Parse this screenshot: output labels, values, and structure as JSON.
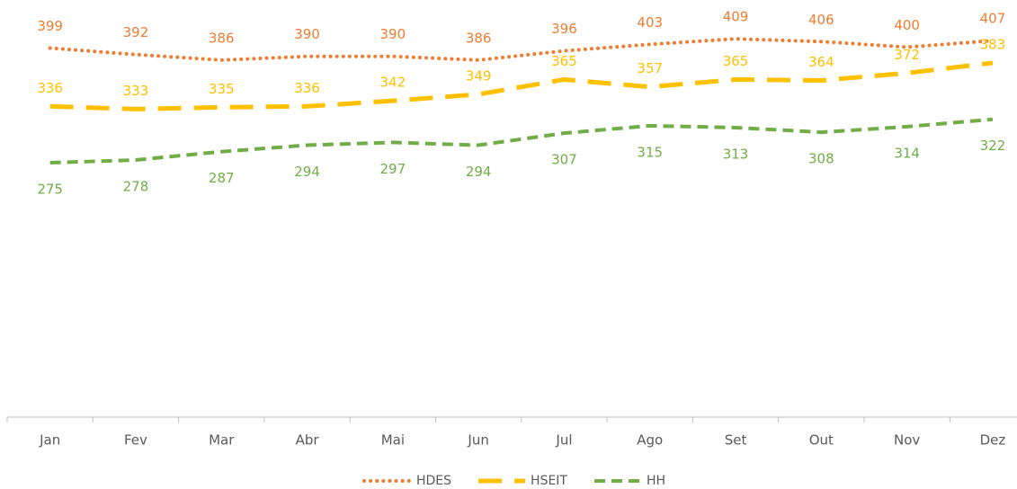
{
  "chart_data": {
    "type": "line",
    "categories": [
      "Jan",
      "Fev",
      "Mar",
      "Abr",
      "Mai",
      "Jun",
      "Jul",
      "Ago",
      "Set",
      "Out",
      "Nov",
      "Dez"
    ],
    "series": [
      {
        "name": "HDES",
        "color": "#ed7d31",
        "dash": "dotted",
        "values": [
          399,
          392,
          386,
          390,
          390,
          386,
          396,
          403,
          409,
          406,
          400,
          407
        ]
      },
      {
        "name": "HSEIT",
        "color": "#ffc000",
        "dash": "long-dash",
        "values": [
          336,
          333,
          335,
          336,
          342,
          349,
          365,
          357,
          365,
          364,
          372,
          383
        ]
      },
      {
        "name": "HH",
        "color": "#70ad47",
        "dash": "dash",
        "values": [
          275,
          278,
          287,
          294,
          297,
          294,
          307,
          315,
          313,
          308,
          314,
          322
        ]
      }
    ],
    "ylim": [
      0,
      450
    ],
    "legend": "bottom"
  }
}
